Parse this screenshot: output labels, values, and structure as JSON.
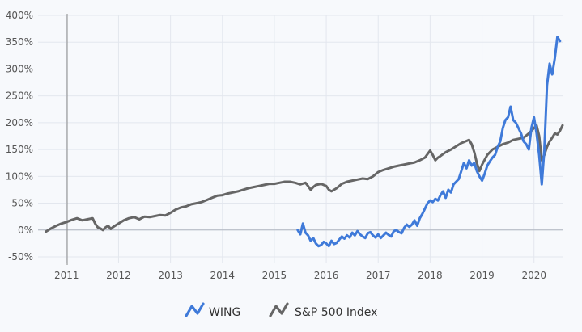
{
  "chart_data": {
    "type": "line",
    "title": "",
    "xlabel": "",
    "ylabel": "",
    "ylim": [
      -50,
      400
    ],
    "xlim": [
      2010.45,
      2020.55
    ],
    "y_ticks": [
      -50,
      0,
      50,
      100,
      150,
      200,
      250,
      300,
      350,
      400
    ],
    "y_tick_labels": [
      "-50%",
      "0%",
      "50%",
      "100%",
      "150%",
      "200%",
      "250%",
      "300%",
      "350%",
      "400%"
    ],
    "x_ticks": [
      2011,
      2012,
      2013,
      2014,
      2015,
      2016,
      2017,
      2018,
      2019,
      2020
    ],
    "x_tick_labels": [
      "2011",
      "2012",
      "2013",
      "2014",
      "2015",
      "2016",
      "2017",
      "2018",
      "2019",
      "2020"
    ],
    "grid": true,
    "legend_position": "bottom",
    "series": [
      {
        "name": "WING",
        "color": "#3f7ad9",
        "x": [
          2015.45,
          2015.5,
          2015.55,
          2015.6,
          2015.65,
          2015.7,
          2015.75,
          2015.8,
          2015.85,
          2015.9,
          2015.95,
          2016.0,
          2016.05,
          2016.1,
          2016.15,
          2016.2,
          2016.25,
          2016.3,
          2016.35,
          2016.4,
          2016.45,
          2016.5,
          2016.55,
          2016.6,
          2016.65,
          2016.7,
          2016.75,
          2016.8,
          2016.85,
          2016.9,
          2016.95,
          2017.0,
          2017.05,
          2017.1,
          2017.15,
          2017.2,
          2017.25,
          2017.3,
          2017.35,
          2017.4,
          2017.45,
          2017.5,
          2017.55,
          2017.6,
          2017.65,
          2017.7,
          2017.75,
          2017.8,
          2017.85,
          2017.9,
          2017.95,
          2018.0,
          2018.05,
          2018.1,
          2018.15,
          2018.2,
          2018.25,
          2018.3,
          2018.35,
          2018.4,
          2018.45,
          2018.5,
          2018.55,
          2018.6,
          2018.65,
          2018.7,
          2018.75,
          2018.8,
          2018.85,
          2018.9,
          2018.95,
          2019.0,
          2019.05,
          2019.1,
          2019.15,
          2019.2,
          2019.25,
          2019.3,
          2019.35,
          2019.4,
          2019.45,
          2019.5,
          2019.55,
          2019.6,
          2019.65,
          2019.7,
          2019.75,
          2019.8,
          2019.85,
          2019.9,
          2019.95,
          2020.0,
          2020.05,
          2020.1,
          2020.15,
          2020.2,
          2020.25,
          2020.3,
          2020.35,
          2020.4,
          2020.45,
          2020.5
        ],
        "values": [
          0,
          -8,
          12,
          -5,
          -10,
          -20,
          -15,
          -25,
          -30,
          -28,
          -22,
          -25,
          -30,
          -20,
          -26,
          -24,
          -18,
          -12,
          -16,
          -10,
          -14,
          -5,
          -10,
          -2,
          -8,
          -12,
          -15,
          -6,
          -4,
          -10,
          -14,
          -8,
          -15,
          -10,
          -5,
          -9,
          -12,
          -2,
          0,
          -4,
          -6,
          4,
          10,
          6,
          10,
          18,
          8,
          22,
          30,
          40,
          50,
          55,
          52,
          58,
          55,
          65,
          72,
          60,
          75,
          70,
          85,
          90,
          95,
          110,
          125,
          115,
          130,
          120,
          125,
          110,
          100,
          92,
          105,
          120,
          128,
          135,
          140,
          155,
          165,
          190,
          205,
          210,
          230,
          205,
          200,
          190,
          180,
          165,
          160,
          150,
          190,
          210,
          180,
          140,
          85,
          150,
          270,
          310,
          290,
          320,
          360,
          352
        ]
      },
      {
        "name": "S&P 500 Index",
        "color": "#666666",
        "x": [
          2010.6,
          2010.7,
          2010.8,
          2010.9,
          2011.0,
          2011.1,
          2011.2,
          2011.3,
          2011.4,
          2011.5,
          2011.55,
          2011.6,
          2011.65,
          2011.7,
          2011.75,
          2011.8,
          2011.85,
          2011.9,
          2012.0,
          2012.1,
          2012.2,
          2012.3,
          2012.4,
          2012.5,
          2012.6,
          2012.7,
          2012.8,
          2012.9,
          2013.0,
          2013.1,
          2013.2,
          2013.3,
          2013.4,
          2013.5,
          2013.6,
          2013.7,
          2013.8,
          2013.9,
          2014.0,
          2014.1,
          2014.2,
          2014.3,
          2014.4,
          2014.5,
          2014.6,
          2014.7,
          2014.8,
          2014.9,
          2015.0,
          2015.1,
          2015.2,
          2015.3,
          2015.4,
          2015.5,
          2015.6,
          2015.65,
          2015.7,
          2015.75,
          2015.8,
          2015.9,
          2016.0,
          2016.05,
          2016.1,
          2016.2,
          2016.3,
          2016.4,
          2016.5,
          2016.6,
          2016.7,
          2016.8,
          2016.9,
          2017.0,
          2017.1,
          2017.2,
          2017.3,
          2017.4,
          2017.5,
          2017.6,
          2017.7,
          2017.8,
          2017.9,
          2018.0,
          2018.05,
          2018.1,
          2018.15,
          2018.2,
          2018.3,
          2018.4,
          2018.5,
          2018.6,
          2018.7,
          2018.75,
          2018.8,
          2018.85,
          2018.9,
          2018.95,
          2019.0,
          2019.1,
          2019.2,
          2019.3,
          2019.4,
          2019.5,
          2019.6,
          2019.7,
          2019.8,
          2019.9,
          2020.0,
          2020.05,
          2020.1,
          2020.15,
          2020.2,
          2020.25,
          2020.3,
          2020.35,
          2020.4,
          2020.45,
          2020.5,
          2020.55
        ],
        "values": [
          -3,
          3,
          8,
          12,
          15,
          19,
          22,
          18,
          20,
          22,
          12,
          5,
          3,
          0,
          5,
          8,
          2,
          6,
          12,
          18,
          22,
          24,
          20,
          25,
          24,
          26,
          28,
          27,
          32,
          38,
          42,
          44,
          48,
          50,
          52,
          56,
          60,
          64,
          65,
          68,
          70,
          72,
          75,
          78,
          80,
          82,
          84,
          86,
          86,
          88,
          90,
          90,
          88,
          85,
          88,
          82,
          75,
          80,
          84,
          86,
          82,
          75,
          72,
          78,
          86,
          90,
          92,
          94,
          96,
          95,
          100,
          108,
          112,
          115,
          118,
          120,
          122,
          124,
          126,
          130,
          135,
          148,
          140,
          130,
          135,
          138,
          145,
          150,
          156,
          162,
          166,
          168,
          160,
          145,
          125,
          110,
          122,
          140,
          150,
          155,
          160,
          163,
          168,
          170,
          172,
          180,
          190,
          195,
          175,
          130,
          140,
          155,
          165,
          172,
          180,
          178,
          185,
          195
        ]
      }
    ]
  }
}
